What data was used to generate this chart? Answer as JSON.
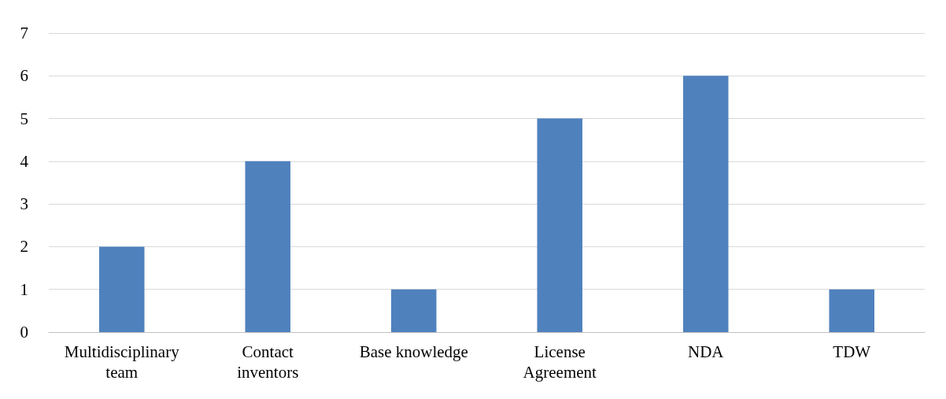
{
  "chart_data": {
    "type": "bar",
    "categories": [
      "Multidisciplinary\nteam",
      "Contact\ninventors",
      "Base knowledge",
      "License\nAgreement",
      "NDA",
      "TDW"
    ],
    "values": [
      2,
      4,
      1,
      5,
      6,
      1
    ],
    "color": "#4f81bd",
    "ylim": [
      0,
      7
    ],
    "yticks": [
      0,
      1,
      2,
      3,
      4,
      5,
      6,
      7
    ],
    "grid": "y"
  }
}
